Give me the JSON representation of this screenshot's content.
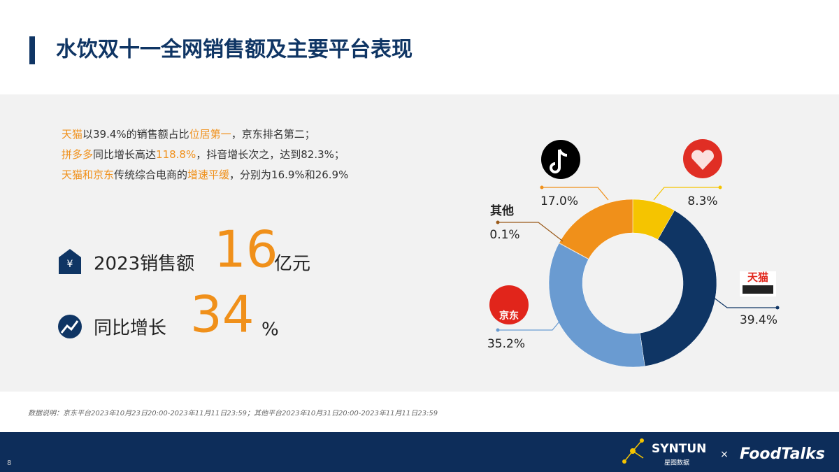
{
  "header": {
    "title": "水饮双十一全网销售额及主要平台表现"
  },
  "summary": [
    [
      {
        "text": "天猫",
        "color": "#f0901a"
      },
      {
        "text": "以39.4%的销售额占比",
        "color": "#333333"
      },
      {
        "text": "位居第一",
        "color": "#f0901a"
      },
      {
        "text": "，京东排名第二；",
        "color": "#333333"
      }
    ],
    [
      {
        "text": "拼多多",
        "color": "#f0901a"
      },
      {
        "text": "同比增长高达",
        "color": "#333333"
      },
      {
        "text": "118.8%",
        "color": "#f0901a"
      },
      {
        "text": "，抖音增长次之，达到82.3%；",
        "color": "#333333"
      }
    ],
    [
      {
        "text": "天猫和京东",
        "color": "#f0901a"
      },
      {
        "text": "传统综合电商的",
        "color": "#333333"
      },
      {
        "text": "增速平缓",
        "color": "#f0901a"
      },
      {
        "text": "，分别为16.9%和26.9%",
        "color": "#333333"
      }
    ]
  ],
  "stats": [
    {
      "label": "2023销售额",
      "value": "16",
      "unit": "亿元"
    },
    {
      "label": "同比增长",
      "value": "34",
      "unit": "%"
    }
  ],
  "chart_data": {
    "type": "donut",
    "categories": [
      null,
      "天猫",
      "京东",
      "其他",
      null
    ],
    "values": [
      8.3,
      39.4,
      35.2,
      0.1,
      17.0
    ],
    "value_labels": [
      "8.3%",
      "39.4%",
      "35.2%",
      "0.1%",
      "17.0%"
    ],
    "colors": [
      "#f5c400",
      "#0f3564",
      "#6a9bd1",
      "#9a5a1a",
      "#f0901a"
    ]
  },
  "footnote": "数据说明：京东平台2023年10月23日20:00-2023年11月11日23:59；其他平台2023年10月31日20:00-2023年11月11日23:59",
  "footer": {
    "page": "8",
    "brand": "SYNTUN",
    "brand_sub": "星图数据",
    "times": "×",
    "partner": "FoodTalks"
  }
}
